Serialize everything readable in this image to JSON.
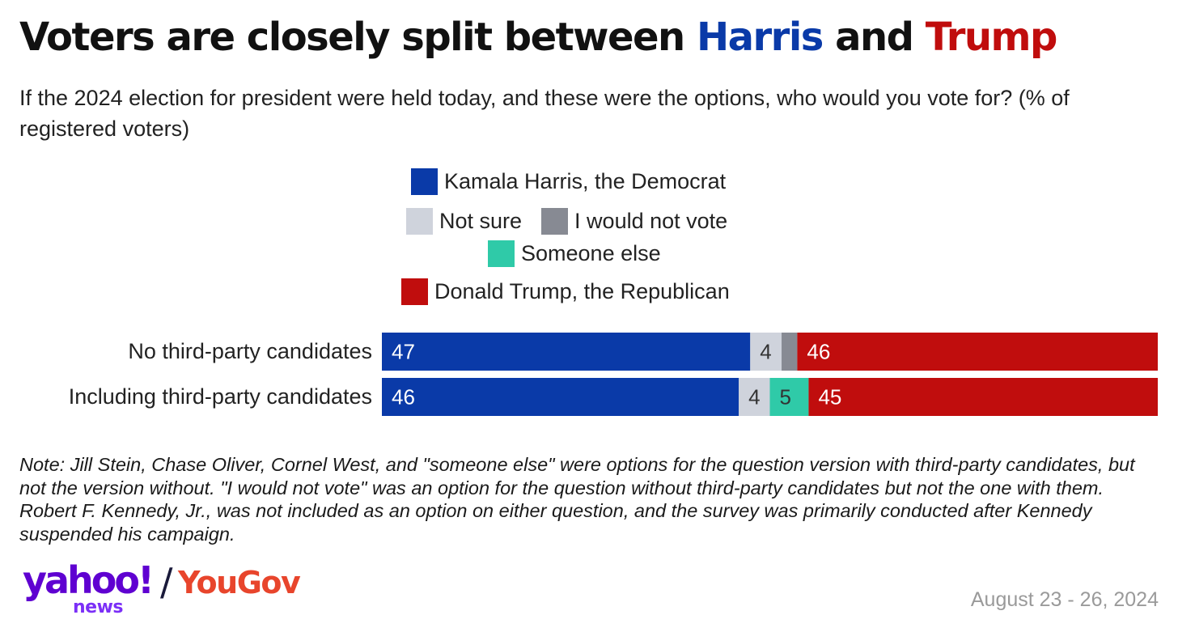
{
  "title": {
    "prefix": "Voters are closely split between ",
    "harris": "Harris",
    "middle": " and ",
    "trump": "Trump"
  },
  "subtitle": "If the 2024 election for president were held today, and these were the options, who would you vote for? (% of registered voters)",
  "colors": {
    "harris": "#0a3aa8",
    "not_sure": "#cfd3dc",
    "would_not_vote": "#878a93",
    "someone_else": "#2fcaa8",
    "trump": "#c00d0d"
  },
  "chart_data": {
    "type": "bar",
    "orientation": "horizontal",
    "stacked": true,
    "legend": [
      "Kamala Harris, the Democrat",
      "Not sure",
      "I would not vote",
      "Someone else",
      "Donald Trump, the Republican"
    ],
    "categories": [
      "No third-party candidates",
      "Including third-party candidates"
    ],
    "series": [
      {
        "name": "Kamala Harris, the Democrat",
        "values": [
          47,
          46
        ],
        "labels": [
          "47",
          "46"
        ]
      },
      {
        "name": "Not sure",
        "values": [
          4,
          4
        ],
        "labels": [
          "4",
          "4"
        ]
      },
      {
        "name": "I would not vote",
        "values": [
          2,
          0
        ],
        "labels": [
          "",
          ""
        ]
      },
      {
        "name": "Someone else",
        "values": [
          0,
          5
        ],
        "labels": [
          "",
          "5"
        ]
      },
      {
        "name": "Donald Trump, the Republican",
        "values": [
          46,
          45
        ],
        "labels": [
          "46",
          "45"
        ]
      }
    ],
    "legend_position": "top-center",
    "grid": false
  },
  "note": "Note: Jill Stein, Chase Oliver, Cornel West, and \"someone else\" were options for the question version with third-party candidates, but not the version without. \"I would not vote\" was an option for the question without third-party candidates but not the one with them. Robert F. Kennedy, Jr., was not included as an option on either question, and the survey was primarily conducted after Kennedy suspended his campaign.",
  "logo": {
    "yahoo": "yahoo!",
    "news": "news",
    "slash": "/",
    "yougov": "YouGov"
  },
  "date": "August 23 - 26, 2024"
}
